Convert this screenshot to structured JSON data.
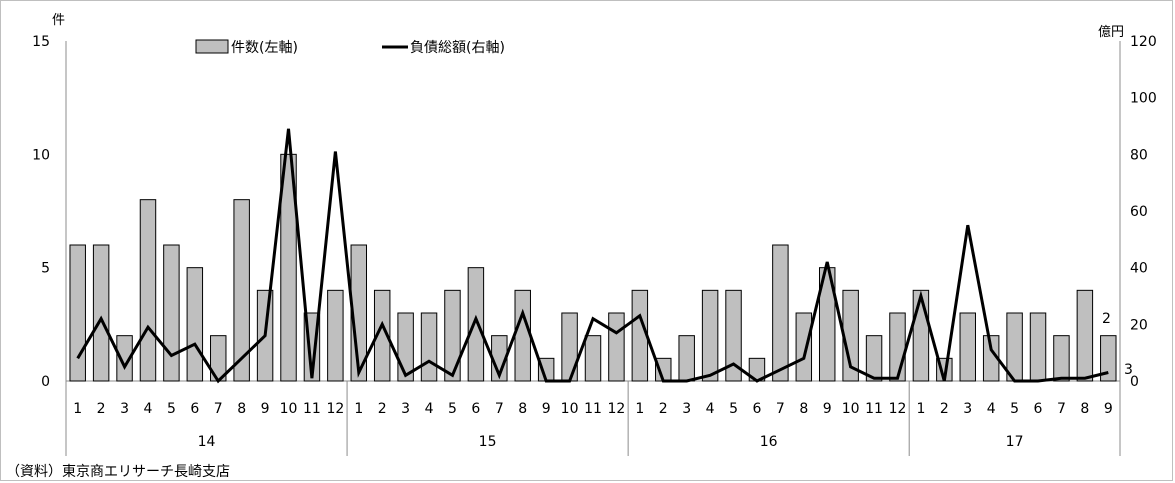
{
  "chart_data": {
    "type": "bar",
    "left_unit": "件",
    "right_unit": "億円",
    "left_ticks": [
      "0",
      "5",
      "10",
      "15"
    ],
    "left_ylim": [
      0,
      15
    ],
    "right_ticks": [
      "0",
      "20",
      "40",
      "60",
      "80",
      "100",
      "120"
    ],
    "right_ylim": [
      0,
      120
    ],
    "grid": false,
    "legend_position": "top",
    "month_labels": [
      "1",
      "2",
      "3",
      "4",
      "5",
      "6",
      "7",
      "8",
      "9",
      "10",
      "11",
      "12",
      "1",
      "2",
      "3",
      "4",
      "5",
      "6",
      "7",
      "8",
      "9",
      "10",
      "11",
      "12",
      "1",
      "2",
      "3",
      "4",
      "5",
      "6",
      "7",
      "8",
      "9",
      "10",
      "11",
      "12",
      "1",
      "2",
      "3",
      "4",
      "5",
      "6",
      "7",
      "8",
      "9"
    ],
    "year_groups": [
      {
        "label": "14",
        "months": 12
      },
      {
        "label": "15",
        "months": 12
      },
      {
        "label": "16",
        "months": 12
      },
      {
        "label": "17",
        "months": 9
      }
    ],
    "series": [
      {
        "name": "件数(左軸)",
        "type": "bar",
        "axis": "left",
        "color": "#bfbfbf",
        "values": [
          6,
          6,
          2,
          8,
          6,
          5,
          2,
          8,
          4,
          10,
          3,
          4,
          6,
          4,
          3,
          3,
          4,
          5,
          2,
          4,
          1,
          3,
          2,
          3,
          4,
          1,
          2,
          4,
          4,
          1,
          6,
          3,
          5,
          4,
          2,
          3,
          4,
          1,
          3,
          2,
          3,
          3,
          2,
          4,
          2
        ]
      },
      {
        "name": "負債総額(右軸)",
        "type": "line",
        "axis": "right",
        "color": "#000000",
        "values": [
          8,
          22,
          5,
          19,
          9,
          13,
          0,
          8,
          16,
          89,
          1,
          81,
          3,
          20,
          2,
          7,
          2,
          22,
          2,
          24,
          0,
          0,
          22,
          17,
          23,
          0,
          0,
          2,
          6,
          0,
          4,
          8,
          42,
          5,
          1,
          1,
          30,
          0,
          55,
          11,
          0,
          0,
          1,
          1,
          3
        ]
      }
    ],
    "annotations": [
      "2",
      "3"
    ]
  },
  "source": "（資料）東京商エリサーチ長崎支店"
}
